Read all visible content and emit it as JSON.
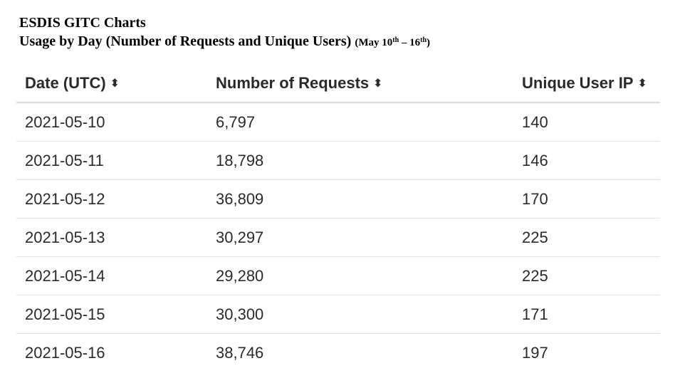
{
  "heading": {
    "title": "ESDIS GITC Charts",
    "subtitle": "Usage by Day (Number of Requests and Unique Users)",
    "range_prefix": "(May 10",
    "range_start_sup": "th",
    "range_sep": " – 16",
    "range_end_sup": "th",
    "range_suffix": ")"
  },
  "chart_data": {
    "type": "table",
    "title": "Usage by Day (Number of Requests and Unique Users)",
    "columns": [
      "Date (UTC)",
      "Number of Requests",
      "Unique User IP"
    ],
    "rows": [
      [
        "2021-05-10",
        "6,797",
        "140"
      ],
      [
        "2021-05-11",
        "18,798",
        "146"
      ],
      [
        "2021-05-12",
        "36,809",
        "170"
      ],
      [
        "2021-05-13",
        "30,297",
        "225"
      ],
      [
        "2021-05-14",
        "29,280",
        "225"
      ],
      [
        "2021-05-15",
        "30,300",
        "171"
      ],
      [
        "2021-05-16",
        "38,746",
        "197"
      ]
    ]
  },
  "icons": {
    "sort": "sort-icon",
    "sort_glyph": "⬍"
  }
}
